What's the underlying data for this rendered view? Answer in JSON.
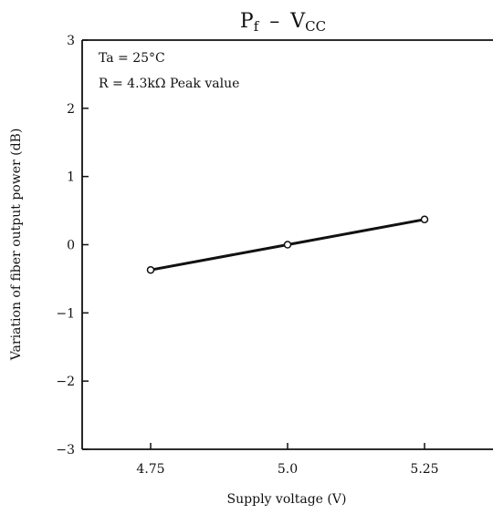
{
  "chart_data": {
    "type": "line",
    "title_parts": {
      "p": "P",
      "p_sub": "f",
      "dash": "–",
      "v": "V",
      "v_sub": "CC"
    },
    "xlabel": "Supply voltage (V)",
    "ylabel": "Variation of fiber output power (dB)",
    "annotations": [
      "Ta = 25°C",
      "R = 4.3kΩ Peak value"
    ],
    "xlim": [
      4.625,
      5.375
    ],
    "ylim": [
      -3,
      3
    ],
    "x_ticks": [
      4.75,
      5.0,
      5.25
    ],
    "x_tick_labels": [
      "4.75",
      "5.0",
      "5.25"
    ],
    "y_ticks": [
      3,
      2,
      1,
      0,
      -1,
      -2,
      -3
    ],
    "y_tick_labels": [
      "3",
      "2",
      "1",
      "0",
      "−1",
      "−2",
      "−3"
    ],
    "grid": false,
    "series": [
      {
        "x": [
          4.75,
          5.0,
          5.25
        ],
        "y": [
          -0.37,
          0.0,
          0.37
        ]
      }
    ]
  }
}
